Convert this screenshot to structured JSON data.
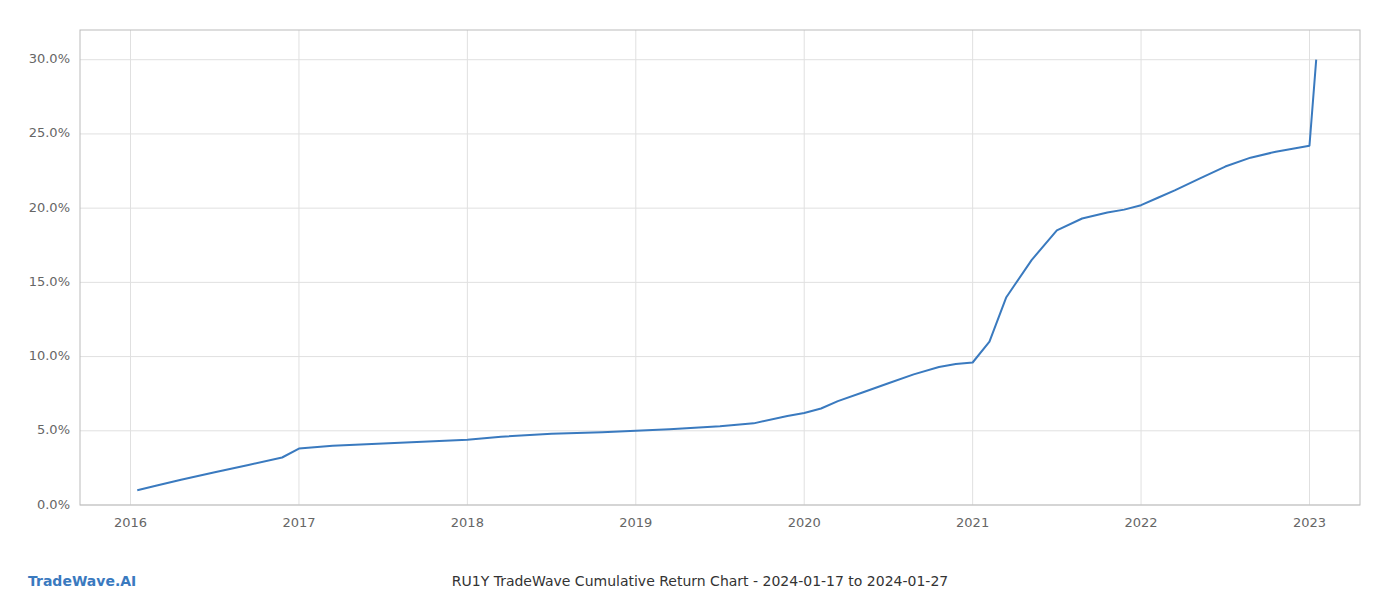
{
  "chart_data": {
    "type": "line",
    "title": "RU1Y TradeWave Cumulative Return Chart - 2024-01-17 to 2024-01-27",
    "annotations": [
      "TradeWave.AI"
    ],
    "color": "#3a7abf",
    "x": [
      2016.04,
      2016.15,
      2016.3,
      2016.5,
      2016.7,
      2016.9,
      2017.0,
      2017.2,
      2017.4,
      2017.6,
      2017.8,
      2018.0,
      2018.2,
      2018.5,
      2018.8,
      2019.0,
      2019.2,
      2019.5,
      2019.7,
      2019.9,
      2020.0,
      2020.1,
      2020.2,
      2020.35,
      2020.5,
      2020.65,
      2020.8,
      2020.9,
      2021.0,
      2021.1,
      2021.2,
      2021.35,
      2021.5,
      2021.65,
      2021.8,
      2021.9,
      2022.0,
      2022.1,
      2022.2,
      2022.35,
      2022.5,
      2022.65,
      2022.8,
      2022.9,
      2023.0,
      2023.04
    ],
    "values": [
      0.01,
      0.013,
      0.017,
      0.022,
      0.027,
      0.032,
      0.038,
      0.04,
      0.041,
      0.042,
      0.043,
      0.044,
      0.046,
      0.048,
      0.049,
      0.05,
      0.051,
      0.053,
      0.055,
      0.06,
      0.062,
      0.065,
      0.07,
      0.076,
      0.082,
      0.088,
      0.093,
      0.095,
      0.096,
      0.11,
      0.14,
      0.165,
      0.185,
      0.193,
      0.197,
      0.199,
      0.202,
      0.207,
      0.212,
      0.22,
      0.228,
      0.234,
      0.238,
      0.24,
      0.242,
      0.3
    ],
    "xlim": [
      2015.7,
      2023.3
    ],
    "ylim": [
      0.0,
      0.32
    ],
    "xticks": [
      2016,
      2017,
      2018,
      2019,
      2020,
      2021,
      2022,
      2023
    ],
    "yticks": [
      {
        "value": 0.0,
        "label": "0.0%"
      },
      {
        "value": 0.05,
        "label": "5.0%"
      },
      {
        "value": 0.1,
        "label": "10.0%"
      },
      {
        "value": 0.15,
        "label": "15.0%"
      },
      {
        "value": 0.2,
        "label": "20.0%"
      },
      {
        "value": 0.25,
        "label": "25.0%"
      },
      {
        "value": 0.3,
        "label": "30.0%"
      }
    ],
    "grid": true
  }
}
